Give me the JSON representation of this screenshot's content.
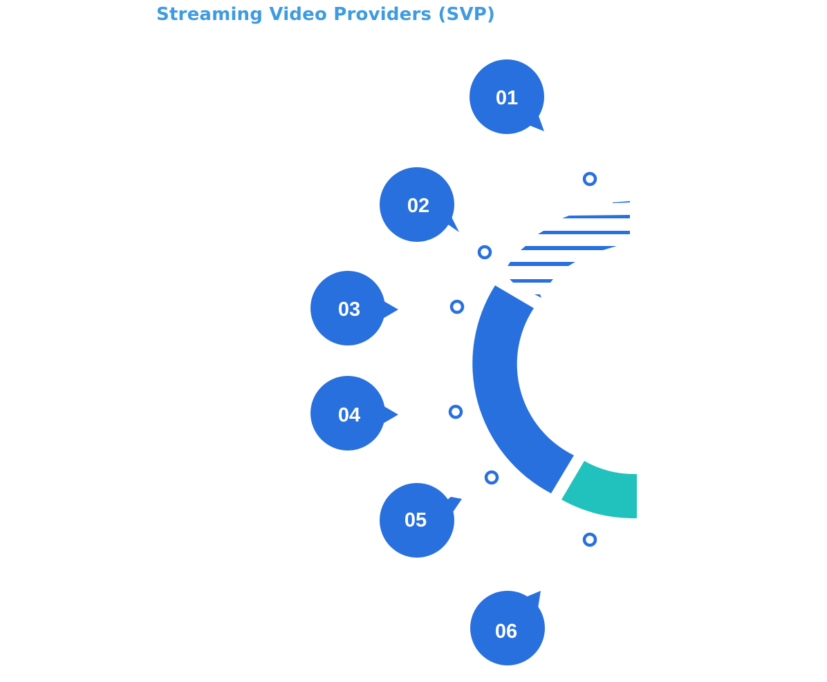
{
  "title": "Streaming Video Providers (SVP)",
  "colors": {
    "title": "#3f9be0",
    "primary": "#2870de",
    "accent": "#21c2bd",
    "background": "#ffffff"
  },
  "steps": [
    {
      "label": "01"
    },
    {
      "label": "02"
    },
    {
      "label": "03"
    },
    {
      "label": "04"
    },
    {
      "label": "05"
    },
    {
      "label": "06"
    }
  ],
  "icons": [
    "ring-marker-icon",
    "pointer-tail-icon"
  ]
}
